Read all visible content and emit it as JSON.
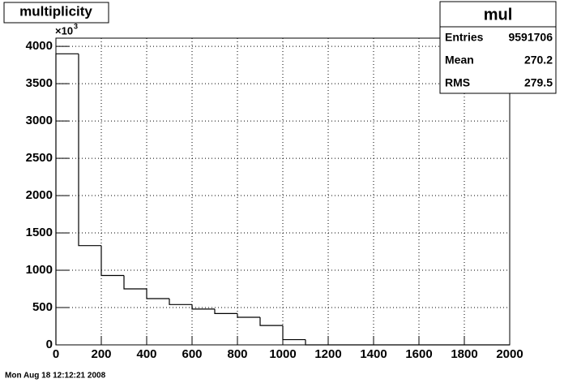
{
  "chart_data": {
    "type": "histogram",
    "title": "multiplicity",
    "bins": [
      0,
      100,
      200,
      300,
      400,
      500,
      600,
      700,
      800,
      900,
      1000,
      1100,
      1200,
      1300,
      1400,
      1500,
      1600,
      1700,
      1800,
      1900,
      2000
    ],
    "values": [
      3900,
      1330,
      930,
      750,
      620,
      540,
      480,
      420,
      370,
      260,
      70,
      0,
      0,
      0,
      0,
      0,
      0,
      0,
      0,
      0
    ],
    "color": "#000000",
    "xlim": [
      0,
      2000
    ],
    "ylim": [
      0,
      4110
    ],
    "xticks": [
      0,
      200,
      400,
      600,
      800,
      1000,
      1200,
      1400,
      1600,
      1800,
      2000
    ],
    "yticks": [
      0,
      500,
      1000,
      1500,
      2000,
      2500,
      3000,
      3500,
      4000
    ],
    "grid": true,
    "y_multiplier": {
      "base": "×10",
      "exponent": "3"
    },
    "stats": {
      "title": "mul",
      "rows": [
        [
          "Entries",
          "9591706"
        ],
        [
          "Mean",
          "270.2"
        ],
        [
          "RMS",
          "279.5"
        ]
      ]
    },
    "footer": "Mon Aug 18 12:12:21 2008"
  }
}
